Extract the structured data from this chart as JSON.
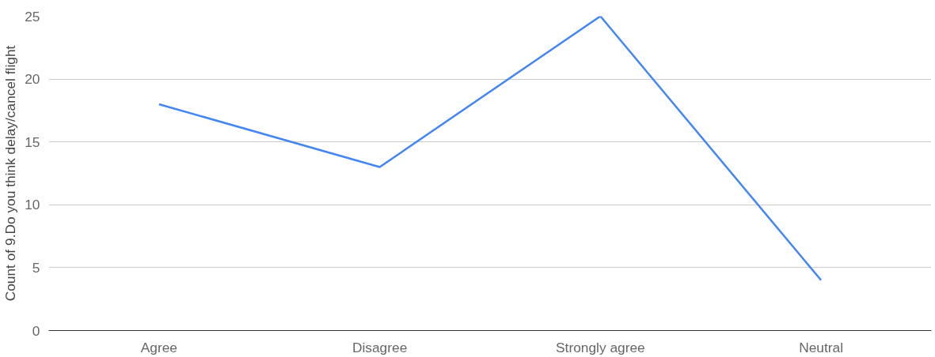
{
  "chart_data": {
    "type": "line",
    "ylabel": "Count of 9.Do you think delay/cancel flight",
    "categories": [
      "Agree",
      "Disagree",
      "Strongly agree",
      "Neutral"
    ],
    "series": [
      {
        "color": "#4285f4",
        "values": [
          18,
          13,
          25,
          4
        ]
      }
    ],
    "ylim": [
      0,
      25
    ],
    "yticks": [
      0,
      5,
      10,
      15,
      20,
      25
    ],
    "grid": "y",
    "marker": "none",
    "line_style": "solid"
  }
}
